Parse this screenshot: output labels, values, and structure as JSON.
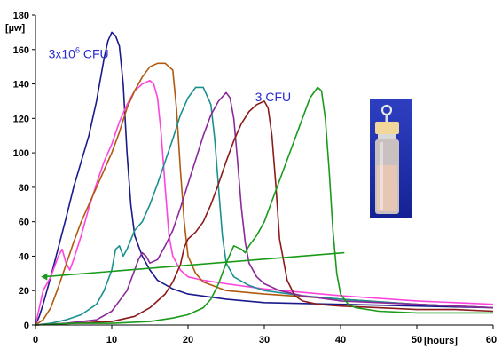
{
  "chart_data": {
    "type": "line",
    "title": "",
    "xlabel": "[hours]",
    "ylabel": "[µw]",
    "xlim": [
      0,
      60
    ],
    "ylim": [
      0,
      180
    ],
    "xticks": [
      0,
      10,
      20,
      30,
      40,
      50,
      60
    ],
    "yticks": [
      0,
      20,
      40,
      60,
      80,
      100,
      120,
      140,
      160,
      180
    ],
    "grid": false,
    "legend": "none",
    "annotations": [
      {
        "base": "3x10",
        "sup": "6",
        "tail": " CFU",
        "x": 1.7,
        "y": 155
      },
      {
        "text": "3 CFU",
        "x": 28.8,
        "y": 130
      }
    ],
    "series": [
      {
        "color": "#1a1a8c",
        "x": [
          0,
          0.5,
          1,
          2,
          3,
          4,
          5,
          6,
          7,
          8,
          9,
          9.5,
          10,
          10.5,
          11,
          11.5,
          12,
          12.5,
          13,
          14,
          15,
          16,
          18,
          20,
          25,
          30,
          40,
          50,
          60
        ],
        "y": [
          0,
          5,
          12,
          28,
          45,
          62,
          80,
          95,
          110,
          130,
          155,
          165,
          170,
          168,
          162,
          140,
          100,
          70,
          52,
          40,
          32,
          26,
          21,
          18,
          15,
          13,
          12,
          11,
          10
        ]
      },
      {
        "color": "#ff44dd",
        "x": [
          0,
          0.5,
          1,
          2,
          3,
          3.5,
          4,
          4.5,
          5,
          6,
          7,
          8,
          9,
          10,
          11,
          12,
          13,
          14,
          15,
          15.5,
          16,
          16.5,
          17,
          17.5,
          18,
          19,
          20,
          22,
          25,
          30,
          40,
          50,
          60
        ],
        "y": [
          0,
          10,
          20,
          28,
          40,
          44,
          36,
          32,
          38,
          52,
          68,
          82,
          95,
          105,
          118,
          128,
          136,
          140,
          142,
          140,
          132,
          110,
          80,
          52,
          40,
          32,
          28,
          26,
          24,
          21,
          17,
          14,
          12
        ]
      },
      {
        "color": "#b05a10",
        "x": [
          0,
          1,
          2,
          3,
          4,
          5,
          6,
          7,
          8,
          9,
          10,
          11,
          12,
          13,
          14,
          15,
          16,
          17,
          18,
          18.5,
          19,
          19.5,
          20,
          21,
          22,
          25,
          30,
          40,
          50,
          60
        ],
        "y": [
          0,
          3,
          10,
          22,
          35,
          48,
          60,
          70,
          80,
          90,
          100,
          112,
          126,
          136,
          144,
          150,
          152,
          152,
          148,
          125,
          90,
          60,
          40,
          30,
          25,
          20,
          18,
          15,
          12,
          10
        ]
      },
      {
        "color": "#1a9090",
        "x": [
          0,
          2,
          4,
          6,
          8,
          9,
          10,
          10.5,
          11,
          11.5,
          12,
          13,
          14,
          15,
          16,
          17,
          18,
          19,
          20,
          21,
          22,
          23,
          23.5,
          24,
          24.5,
          25,
          26,
          28,
          30,
          35,
          40,
          50,
          60
        ],
        "y": [
          0,
          1,
          3,
          6,
          12,
          20,
          32,
          44,
          46,
          40,
          44,
          55,
          60,
          70,
          82,
          95,
          108,
          122,
          132,
          138,
          138,
          128,
          108,
          80,
          52,
          36,
          28,
          23,
          20,
          17,
          15,
          12,
          10
        ]
      },
      {
        "color": "#8a2a9a",
        "x": [
          0,
          4,
          8,
          10,
          12,
          13,
          13.5,
          14,
          14.5,
          15,
          16,
          17,
          18,
          19,
          20,
          21,
          22,
          23,
          24,
          25,
          25.5,
          26,
          26.5,
          27,
          27.5,
          28,
          29,
          30,
          32,
          35,
          40,
          50,
          60
        ],
        "y": [
          0,
          1,
          3,
          8,
          20,
          32,
          38,
          42,
          40,
          36,
          38,
          46,
          55,
          68,
          82,
          96,
          110,
          122,
          130,
          135,
          132,
          120,
          95,
          68,
          48,
          36,
          28,
          24,
          20,
          17,
          14,
          12,
          10
        ]
      },
      {
        "color": "#8b1a1a",
        "x": [
          0,
          5,
          10,
          13,
          15,
          17,
          18,
          19,
          19.5,
          20,
          21,
          22,
          23,
          24,
          25,
          26,
          27,
          28,
          29,
          30,
          30.5,
          31,
          31.5,
          32,
          33,
          34,
          35,
          37,
          40,
          45,
          50,
          55,
          60
        ],
        "y": [
          0,
          1,
          2,
          5,
          10,
          18,
          25,
          35,
          45,
          50,
          54,
          60,
          70,
          82,
          95,
          107,
          117,
          124,
          128,
          130,
          126,
          110,
          82,
          50,
          26,
          17,
          14,
          12,
          11,
          10,
          9,
          9,
          8
        ]
      },
      {
        "color": "#1a9a1a",
        "x": [
          0,
          5,
          10,
          15,
          18,
          20,
          22,
          23,
          24,
          25,
          26,
          27,
          27.5,
          28,
          29,
          30,
          31,
          32,
          33,
          34,
          35,
          36,
          37,
          37.5,
          38,
          38.5,
          39,
          39.5,
          40,
          41,
          42,
          45,
          50,
          55,
          60
        ],
        "y": [
          0,
          1,
          1,
          2,
          4,
          6,
          10,
          15,
          24,
          36,
          46,
          44,
          42,
          46,
          52,
          60,
          72,
          84,
          96,
          108,
          120,
          132,
          138,
          136,
          120,
          90,
          55,
          30,
          18,
          12,
          10,
          8,
          7,
          7,
          7
        ]
      },
      {
        "color": "#1a9a1a",
        "x": [
          1,
          40.5
        ],
        "y": [
          28,
          42
        ],
        "marker_x": 1.2
      }
    ]
  }
}
